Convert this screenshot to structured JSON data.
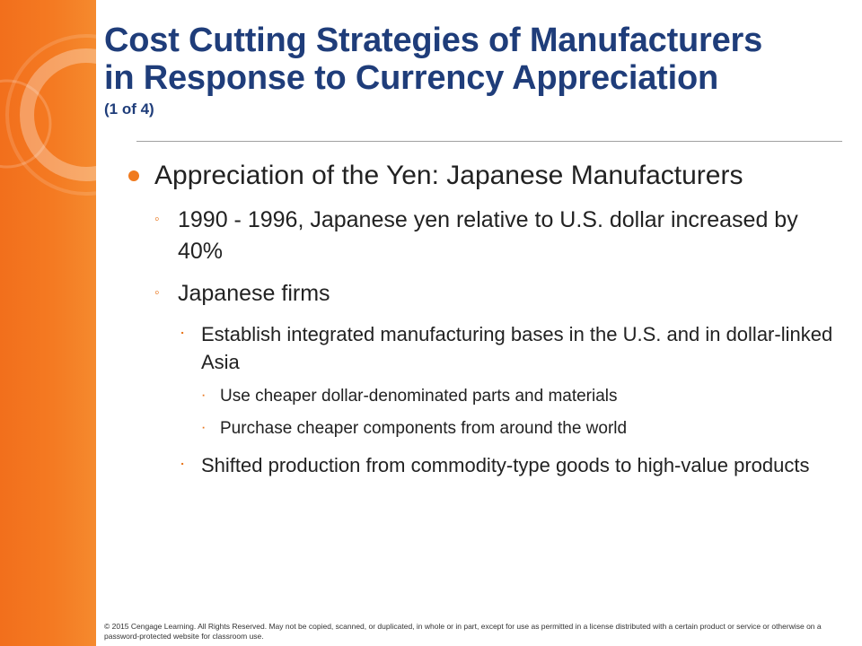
{
  "slide": {
    "title_line1": "Cost Cutting Strategies of Manufacturers",
    "title_line2": "in Response to Currency Appreciation",
    "subtitle": "(1 of 4)",
    "bullets": [
      {
        "level": 1,
        "text": "Appreciation of the Yen: Japanese Manufacturers"
      },
      {
        "level": 2,
        "text": "1990 - 1996, Japanese yen relative to U.S. dollar increased by 40%"
      },
      {
        "level": 2,
        "text": "Japanese firms"
      },
      {
        "level": 3,
        "text": "Establish integrated manufacturing bases in the U.S. and in dollar-linked Asia"
      },
      {
        "level": 4,
        "text": "Use  cheaper dollar-denominated parts and materials"
      },
      {
        "level": 4,
        "text": "Purchase cheaper components from around the world"
      },
      {
        "level": 3,
        "text": "Shifted production from commodity-type goods to high-value products"
      }
    ],
    "footer": "© 2015 Cengage Learning. All Rights Reserved. May not be copied, scanned, or duplicated, in whole or in part, except for use as permitted in a license distributed with a certain product or service or otherwise on a password-protected website for classroom use."
  },
  "colors": {
    "accent": "#f47a22",
    "title": "#1f3d7a"
  },
  "icons": {
    "level1": "filled-circle-bullet",
    "level2": "circle-bullet",
    "level3": "dot-bullet",
    "level4": "dot-bullet"
  }
}
